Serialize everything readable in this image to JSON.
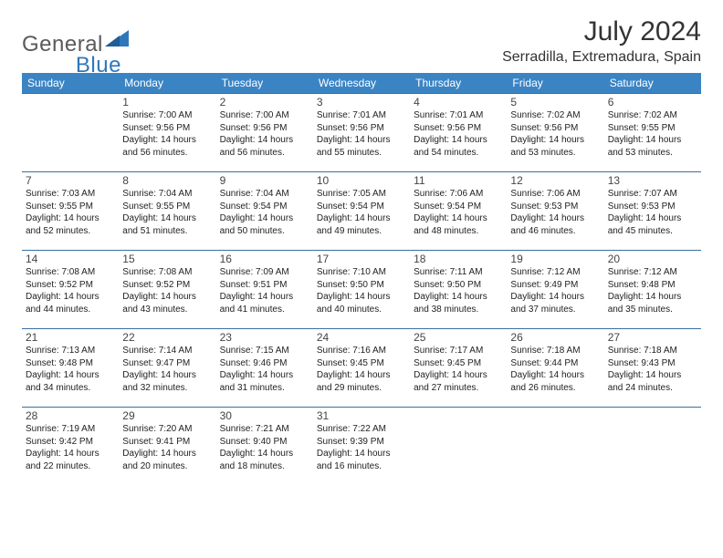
{
  "brand": {
    "part1": "General",
    "part2": "Blue"
  },
  "colors": {
    "header_bg": "#3b84c4",
    "header_text": "#ffffff",
    "row_border": "#3b6fa0",
    "brand_gray": "#5a5a5a",
    "brand_blue": "#2f77bb",
    "body_text": "#222222",
    "title_text": "#333333",
    "background": "#ffffff"
  },
  "typography": {
    "title_fontsize": 30,
    "location_fontsize": 16,
    "weekday_fontsize": 12,
    "daynum_fontsize": 12,
    "cell_fontsize": 10
  },
  "title": "July 2024",
  "location": "Serradilla, Extremadura, Spain",
  "weekdays": [
    "Sunday",
    "Monday",
    "Tuesday",
    "Wednesday",
    "Thursday",
    "Friday",
    "Saturday"
  ],
  "calendar": {
    "first_weekday_index": 1,
    "days": [
      {
        "n": "1",
        "sunrise": "7:00 AM",
        "sunset": "9:56 PM",
        "daylight": "14 hours and 56 minutes."
      },
      {
        "n": "2",
        "sunrise": "7:00 AM",
        "sunset": "9:56 PM",
        "daylight": "14 hours and 56 minutes."
      },
      {
        "n": "3",
        "sunrise": "7:01 AM",
        "sunset": "9:56 PM",
        "daylight": "14 hours and 55 minutes."
      },
      {
        "n": "4",
        "sunrise": "7:01 AM",
        "sunset": "9:56 PM",
        "daylight": "14 hours and 54 minutes."
      },
      {
        "n": "5",
        "sunrise": "7:02 AM",
        "sunset": "9:56 PM",
        "daylight": "14 hours and 53 minutes."
      },
      {
        "n": "6",
        "sunrise": "7:02 AM",
        "sunset": "9:55 PM",
        "daylight": "14 hours and 53 minutes."
      },
      {
        "n": "7",
        "sunrise": "7:03 AM",
        "sunset": "9:55 PM",
        "daylight": "14 hours and 52 minutes."
      },
      {
        "n": "8",
        "sunrise": "7:04 AM",
        "sunset": "9:55 PM",
        "daylight": "14 hours and 51 minutes."
      },
      {
        "n": "9",
        "sunrise": "7:04 AM",
        "sunset": "9:54 PM",
        "daylight": "14 hours and 50 minutes."
      },
      {
        "n": "10",
        "sunrise": "7:05 AM",
        "sunset": "9:54 PM",
        "daylight": "14 hours and 49 minutes."
      },
      {
        "n": "11",
        "sunrise": "7:06 AM",
        "sunset": "9:54 PM",
        "daylight": "14 hours and 48 minutes."
      },
      {
        "n": "12",
        "sunrise": "7:06 AM",
        "sunset": "9:53 PM",
        "daylight": "14 hours and 46 minutes."
      },
      {
        "n": "13",
        "sunrise": "7:07 AM",
        "sunset": "9:53 PM",
        "daylight": "14 hours and 45 minutes."
      },
      {
        "n": "14",
        "sunrise": "7:08 AM",
        "sunset": "9:52 PM",
        "daylight": "14 hours and 44 minutes."
      },
      {
        "n": "15",
        "sunrise": "7:08 AM",
        "sunset": "9:52 PM",
        "daylight": "14 hours and 43 minutes."
      },
      {
        "n": "16",
        "sunrise": "7:09 AM",
        "sunset": "9:51 PM",
        "daylight": "14 hours and 41 minutes."
      },
      {
        "n": "17",
        "sunrise": "7:10 AM",
        "sunset": "9:50 PM",
        "daylight": "14 hours and 40 minutes."
      },
      {
        "n": "18",
        "sunrise": "7:11 AM",
        "sunset": "9:50 PM",
        "daylight": "14 hours and 38 minutes."
      },
      {
        "n": "19",
        "sunrise": "7:12 AM",
        "sunset": "9:49 PM",
        "daylight": "14 hours and 37 minutes."
      },
      {
        "n": "20",
        "sunrise": "7:12 AM",
        "sunset": "9:48 PM",
        "daylight": "14 hours and 35 minutes."
      },
      {
        "n": "21",
        "sunrise": "7:13 AM",
        "sunset": "9:48 PM",
        "daylight": "14 hours and 34 minutes."
      },
      {
        "n": "22",
        "sunrise": "7:14 AM",
        "sunset": "9:47 PM",
        "daylight": "14 hours and 32 minutes."
      },
      {
        "n": "23",
        "sunrise": "7:15 AM",
        "sunset": "9:46 PM",
        "daylight": "14 hours and 31 minutes."
      },
      {
        "n": "24",
        "sunrise": "7:16 AM",
        "sunset": "9:45 PM",
        "daylight": "14 hours and 29 minutes."
      },
      {
        "n": "25",
        "sunrise": "7:17 AM",
        "sunset": "9:45 PM",
        "daylight": "14 hours and 27 minutes."
      },
      {
        "n": "26",
        "sunrise": "7:18 AM",
        "sunset": "9:44 PM",
        "daylight": "14 hours and 26 minutes."
      },
      {
        "n": "27",
        "sunrise": "7:18 AM",
        "sunset": "9:43 PM",
        "daylight": "14 hours and 24 minutes."
      },
      {
        "n": "28",
        "sunrise": "7:19 AM",
        "sunset": "9:42 PM",
        "daylight": "14 hours and 22 minutes."
      },
      {
        "n": "29",
        "sunrise": "7:20 AM",
        "sunset": "9:41 PM",
        "daylight": "14 hours and 20 minutes."
      },
      {
        "n": "30",
        "sunrise": "7:21 AM",
        "sunset": "9:40 PM",
        "daylight": "14 hours and 18 minutes."
      },
      {
        "n": "31",
        "sunrise": "7:22 AM",
        "sunset": "9:39 PM",
        "daylight": "14 hours and 16 minutes."
      }
    ]
  },
  "labels": {
    "sunrise": "Sunrise:",
    "sunset": "Sunset:",
    "daylight": "Daylight:"
  }
}
